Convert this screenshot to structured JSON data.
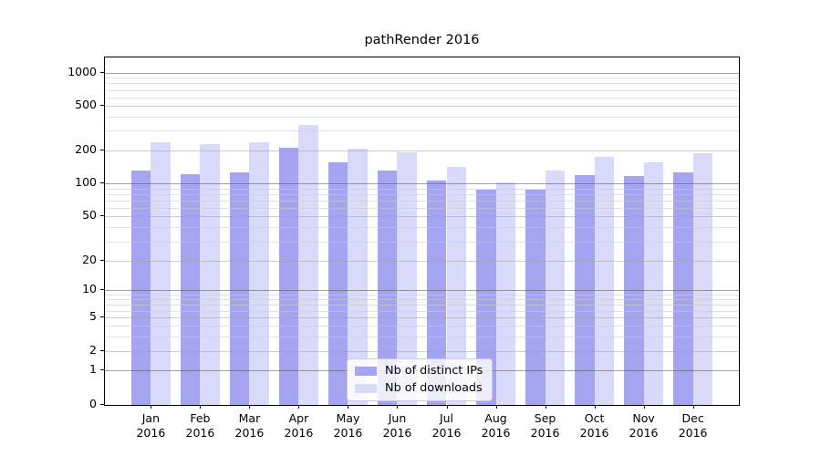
{
  "chart_data": {
    "type": "bar",
    "title": "pathRender 2016",
    "year": "2016",
    "categories": [
      "Jan",
      "Feb",
      "Mar",
      "Apr",
      "May",
      "Jun",
      "Jul",
      "Aug",
      "Sep",
      "Oct",
      "Nov",
      "Dec"
    ],
    "series": [
      {
        "name": "Nb of distinct IPs",
        "color": "#a4a4f1",
        "values": [
          131,
          120,
          127,
          211,
          154,
          131,
          107,
          88,
          88,
          119,
          116,
          127
        ]
      },
      {
        "name": "Nb of downloads",
        "color": "#d9d9f9",
        "values": [
          235,
          225,
          234,
          335,
          207,
          191,
          141,
          103,
          131,
          175,
          156,
          186
        ]
      }
    ],
    "y_axis": {
      "scale": "log-like with 0 baseline",
      "tick_values": [
        0,
        1,
        2,
        5,
        10,
        20,
        50,
        100,
        200,
        500,
        1000
      ],
      "ticks": [
        {
          "v": 0,
          "frac": 1.0
        },
        {
          "v": 1,
          "frac": 0.9008
        },
        {
          "v": 2,
          "frac": 0.8446
        },
        {
          "v": 5,
          "frac": 0.7493
        },
        {
          "v": 10,
          "frac": 0.6697
        },
        {
          "v": 20,
          "frac": 0.5862
        },
        {
          "v": 50,
          "frac": 0.4569
        },
        {
          "v": 100,
          "frac": 0.3624
        },
        {
          "v": 200,
          "frac": 0.2666
        },
        {
          "v": 500,
          "frac": 0.1397
        },
        {
          "v": 1000,
          "frac": 0.0439
        }
      ],
      "minor_values": [
        3,
        4,
        6,
        7,
        8,
        9,
        30,
        40,
        60,
        70,
        80,
        90,
        300,
        400,
        600,
        700,
        800,
        900
      ],
      "grid": "on"
    },
    "x_layout": {
      "margin_frac": 0.0725,
      "bar_width_frac": 0.4
    },
    "legend_position": "lower center"
  }
}
